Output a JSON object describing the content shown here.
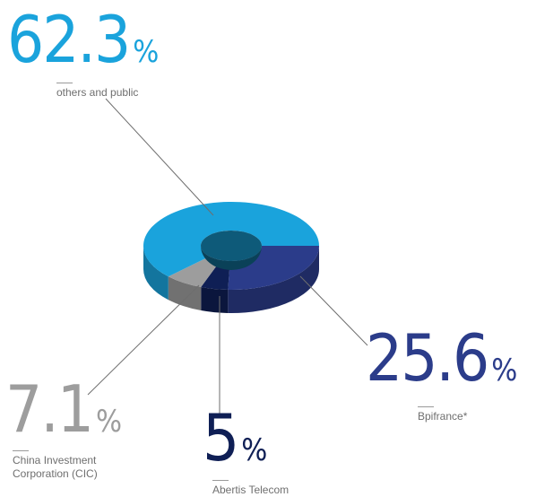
{
  "chart_data": {
    "type": "pie",
    "style": "3d-donut",
    "slices": [
      {
        "value": 62.3,
        "unit": "%",
        "label": "others and public",
        "color": "#1aa3dc"
      },
      {
        "value": 25.6,
        "unit": "%",
        "label": "Bpifrance*",
        "color": "#2b3c8a"
      },
      {
        "value": 5,
        "unit": "%",
        "label": "Abertis Telecom",
        "color": "#0f1f55"
      },
      {
        "value": 7.1,
        "unit": "%",
        "label": "China Investment\nCorporation (CIC)",
        "color": "#9d9d9d"
      }
    ]
  }
}
